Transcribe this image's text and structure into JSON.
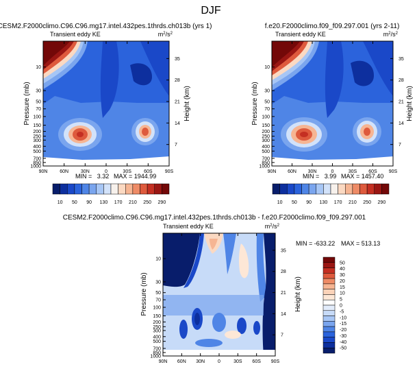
{
  "page_title": "DJF",
  "colors": {
    "ke_palette": [
      "#081d6b",
      "#0d2f9e",
      "#1a48c8",
      "#2b63dc",
      "#4f85e6",
      "#7aa5ee",
      "#a7c6f5",
      "#d2e2fa",
      "#f7f1ec",
      "#fbd9c2",
      "#f6b593",
      "#ee8b66",
      "#de5a3d",
      "#c42f22",
      "#9a1613",
      "#730808"
    ],
    "diff_palette": [
      "#081d6b",
      "#0d2f9e",
      "#1a48c8",
      "#2b63dc",
      "#4f85e6",
      "#7aa5ee",
      "#a7c6f5",
      "#c7dbf8",
      "#e2ecfb",
      "#ffffff",
      "#fde7d6",
      "#fbd3b9",
      "#f6b593",
      "#ee8b66",
      "#de5a3d",
      "#c42f22",
      "#9a1613",
      "#730808"
    ]
  },
  "chart_data": [
    {
      "type": "heatmap",
      "title": "CESM2.F2000climo.C96.C96.mg17.intel.432pes.1thrds.ch013b (yrs 1)",
      "left_string": "Transient eddy KE",
      "right_string": "m²/s²",
      "ylabel": "Pressure (mb)",
      "ylabel_right": "Height (km)",
      "x_ticks": [
        "90N",
        "60N",
        "30N",
        "0",
        "30S",
        "60S",
        "90S"
      ],
      "x_range": [
        90,
        -90
      ],
      "y_ticks": [
        10,
        30,
        50,
        70,
        100,
        150,
        200,
        250,
        300,
        400,
        500,
        700,
        850,
        1000
      ],
      "y_range_mb": [
        1000,
        3
      ],
      "height_ticks_km": [
        7,
        14,
        21,
        28,
        35
      ],
      "min_label": "MIN =   3.32",
      "max_label": "MAX = 1944.99",
      "min": 3.32,
      "max": 1944.99,
      "levels": [
        10,
        30,
        50,
        70,
        90,
        110,
        130,
        150,
        170,
        190,
        210,
        230,
        250,
        270,
        290
      ],
      "colorbar_labels": [
        "10",
        "50",
        "90",
        "130",
        "170",
        "210",
        "250",
        "290"
      ],
      "features": [
        {
          "name": "NH stratospheric polar jet",
          "lat": 85,
          "p_mb": 5,
          "value": 1944.99
        },
        {
          "name": "NH midlatitude storm track",
          "lat": 38,
          "p_mb": 280,
          "value": 280
        },
        {
          "name": "SH midlatitude storm track",
          "lat": -48,
          "p_mb": 280,
          "value": 230
        },
        {
          "name": "Tropical tropopause minimum",
          "lat": 0,
          "p_mb": 100,
          "value": 10
        }
      ]
    },
    {
      "type": "heatmap",
      "title": "f.e20.F2000climo.f09_f09.297.001 (yrs 2-11)",
      "left_string": "Transient eddy KE",
      "right_string": "m²/s²",
      "ylabel": "Pressure (mb)",
      "ylabel_right": "Height (km)",
      "x_ticks": [
        "90N",
        "60N",
        "30N",
        "0",
        "30S",
        "60S",
        "90S"
      ],
      "x_range": [
        90,
        -90
      ],
      "y_ticks": [
        10,
        30,
        50,
        70,
        100,
        150,
        200,
        250,
        300,
        400,
        500,
        700,
        850,
        1000
      ],
      "y_range_mb": [
        1000,
        3
      ],
      "height_ticks_km": [
        7,
        14,
        21,
        28,
        35
      ],
      "min_label": "MIN =   3.99",
      "max_label": "MAX = 1457.40",
      "min": 3.99,
      "max": 1457.4,
      "levels": [
        10,
        30,
        50,
        70,
        90,
        110,
        130,
        150,
        170,
        190,
        210,
        230,
        250,
        270,
        290
      ],
      "colorbar_labels": [
        "10",
        "50",
        "90",
        "130",
        "170",
        "210",
        "250",
        "290"
      ],
      "features": [
        {
          "name": "NH stratospheric polar jet",
          "lat": 85,
          "p_mb": 5,
          "value": 1457.4
        },
        {
          "name": "NH midlatitude storm track",
          "lat": 38,
          "p_mb": 280,
          "value": 270
        },
        {
          "name": "SH midlatitude storm track",
          "lat": -48,
          "p_mb": 280,
          "value": 240
        },
        {
          "name": "Tropical tropopause minimum",
          "lat": 0,
          "p_mb": 100,
          "value": 10
        }
      ]
    },
    {
      "type": "heatmap",
      "title": "CESM2.F2000climo.C96.C96.mg17.intel.432pes.1thrds.ch013b - f.e20.F2000climo.f09_f09.297.001",
      "left_string": "Transient eddy KE",
      "right_string": "m²/s²",
      "ylabel": "Pressure (mb)",
      "ylabel_right": "Height (km)",
      "x_ticks": [
        "90N",
        "60N",
        "30N",
        "0",
        "30S",
        "60S",
        "90S"
      ],
      "x_range": [
        90,
        -90
      ],
      "y_ticks": [
        10,
        30,
        50,
        70,
        100,
        150,
        200,
        250,
        300,
        400,
        500,
        700,
        850,
        1000
      ],
      "y_range_mb": [
        1000,
        3
      ],
      "height_ticks_km": [
        7,
        14,
        21,
        28,
        35
      ],
      "min_label": "MIN = -633.22",
      "max_label": "MAX = 513.13",
      "min": -633.22,
      "max": 513.13,
      "levels": [
        -50,
        -40,
        -30,
        -20,
        -15,
        -10,
        -5,
        0,
        5,
        10,
        15,
        20,
        30,
        40,
        50
      ],
      "colorbar_labels": [
        "50",
        "40",
        "30",
        "20",
        "15",
        "10",
        "5",
        "0",
        "-5",
        "-10",
        "-15",
        "-20",
        "-30",
        "-40",
        "-50"
      ],
      "features": [
        {
          "name": "NH polar stratosphere",
          "lat": 75,
          "p_mb": 10,
          "value": -60
        },
        {
          "name": "Tropical upper troposphere",
          "lat": 8,
          "p_mb": 8,
          "value": 15
        },
        {
          "name": "Subtropical SH stratosphere",
          "lat": -35,
          "p_mb": 30,
          "value": 5
        },
        {
          "name": "SH high latitude stratosphere",
          "lat": -75,
          "p_mb": 10,
          "value": -60
        }
      ]
    }
  ]
}
